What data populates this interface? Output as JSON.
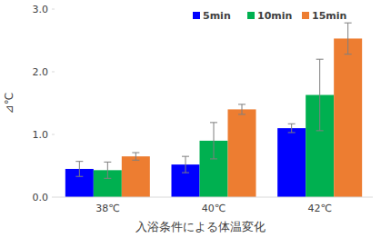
{
  "chart_data": {
    "type": "bar",
    "categories": [
      "38℃",
      "40℃",
      "42℃"
    ],
    "series": [
      {
        "name": "5min",
        "color": "#0000ff",
        "values": [
          0.45,
          0.52,
          1.1
        ],
        "errors": [
          0.12,
          0.13,
          0.07
        ]
      },
      {
        "name": "10min",
        "color": "#00b050",
        "values": [
          0.43,
          0.9,
          1.63
        ],
        "errors": [
          0.13,
          0.29,
          0.57
        ]
      },
      {
        "name": "15min",
        "color": "#ed7d31",
        "values": [
          0.65,
          1.4,
          2.53
        ],
        "errors": [
          0.06,
          0.08,
          0.25
        ]
      }
    ],
    "y_label": "⊿℃",
    "x_label": "入浴条件による体温変化",
    "ylim": [
      0,
      3
    ],
    "yticks": [
      {
        "value": 0,
        "label": "0.0"
      },
      {
        "value": 1,
        "label": "1.0"
      },
      {
        "value": 2,
        "label": "2.0"
      },
      {
        "value": 3,
        "label": "3.0"
      }
    ],
    "grid": false,
    "legend": "top"
  }
}
